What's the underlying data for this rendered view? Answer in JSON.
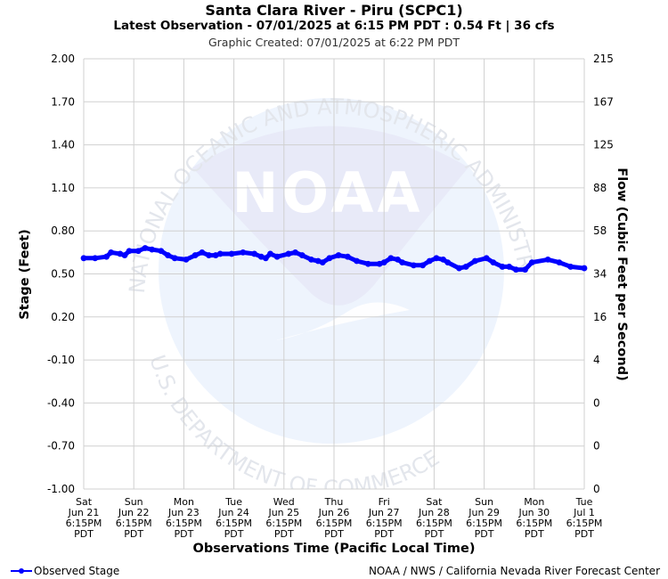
{
  "page": {
    "title": "Santa Clara River - Piru (SCPC1)",
    "subtitle": "Latest Observation - 07/01/2025 at 6:15 PM PDT : 0.54 Ft | 36 cfs",
    "created": "Graphic Created: 07/01/2025 at 6:22 PM PDT",
    "legend_label": "Observed Stage",
    "credit": "NOAA / NWS / California Nevada River Forecast Center",
    "watermark": {
      "logo_text": "NOAA",
      "top_text": "NATIONAL OCEANIC AND ATMOSPHERIC ADMINISTRATION",
      "bottom_text": "U.S. DEPARTMENT OF COMMERCE"
    }
  },
  "colors": {
    "series": "#0000ff",
    "grid": "#d0d0d0",
    "watermark_light": "#eef4fd",
    "watermark_mid": "#e9ebf8"
  },
  "chart_data": {
    "type": "line",
    "xlabel": "Observations Time (Pacific Local Time)",
    "ylabel": "Stage (Feet)",
    "y2label": "Flow (Cubic Feet per Second)",
    "ylim": [
      -1.0,
      2.0
    ],
    "yticks": [
      "2.00",
      "1.70",
      "1.40",
      "1.10",
      "0.80",
      "0.50",
      "0.20",
      "-0.10",
      "-0.40",
      "-0.70",
      "-1.00"
    ],
    "y2ticks": [
      "215",
      "167",
      "125",
      "88",
      "58",
      "34",
      "16",
      "4",
      "0",
      "0",
      "0"
    ],
    "xlim_days": [
      0,
      10
    ],
    "xticks": [
      {
        "day": "Sat",
        "date": "Jun 21",
        "time": "6:15PM",
        "tz": "PDT"
      },
      {
        "day": "Sun",
        "date": "Jun 22",
        "time": "6:15PM",
        "tz": "PDT"
      },
      {
        "day": "Mon",
        "date": "Jun 23",
        "time": "6:15PM",
        "tz": "PDT"
      },
      {
        "day": "Tue",
        "date": "Jun 24",
        "time": "6:15PM",
        "tz": "PDT"
      },
      {
        "day": "Wed",
        "date": "Jun 25",
        "time": "6:15PM",
        "tz": "PDT"
      },
      {
        "day": "Thu",
        "date": "Jun 26",
        "time": "6:15PM",
        "tz": "PDT"
      },
      {
        "day": "Fri",
        "date": "Jun 27",
        "time": "6:15PM",
        "tz": "PDT"
      },
      {
        "day": "Sat",
        "date": "Jun 28",
        "time": "6:15PM",
        "tz": "PDT"
      },
      {
        "day": "Sun",
        "date": "Jun 29",
        "time": "6:15PM",
        "tz": "PDT"
      },
      {
        "day": "Mon",
        "date": "Jun 30",
        "time": "6:15PM",
        "tz": "PDT"
      },
      {
        "day": "Tue",
        "date": "Jul 1",
        "time": "6:15PM",
        "tz": "PDT"
      }
    ],
    "grid": true,
    "legend": "bottom-left",
    "series": [
      {
        "name": "Observed Stage",
        "points": [
          [
            0.0,
            0.61
          ],
          [
            0.25,
            0.61
          ],
          [
            0.5,
            0.62
          ],
          [
            0.6,
            0.65
          ],
          [
            0.8,
            0.64
          ],
          [
            0.9,
            0.63
          ],
          [
            1.0,
            0.66
          ],
          [
            1.2,
            0.66
          ],
          [
            1.35,
            0.68
          ],
          [
            1.5,
            0.67
          ],
          [
            1.7,
            0.66
          ],
          [
            1.85,
            0.63
          ],
          [
            2.0,
            0.61
          ],
          [
            2.25,
            0.6
          ],
          [
            2.45,
            0.63
          ],
          [
            2.6,
            0.65
          ],
          [
            2.75,
            0.63
          ],
          [
            2.9,
            0.63
          ],
          [
            3.0,
            0.64
          ],
          [
            3.25,
            0.64
          ],
          [
            3.5,
            0.65
          ],
          [
            3.75,
            0.64
          ],
          [
            3.9,
            0.62
          ],
          [
            4.0,
            0.61
          ],
          [
            4.1,
            0.64
          ],
          [
            4.25,
            0.62
          ],
          [
            4.5,
            0.64
          ],
          [
            4.65,
            0.65
          ],
          [
            4.8,
            0.63
          ],
          [
            5.0,
            0.6
          ],
          [
            5.15,
            0.59
          ],
          [
            5.25,
            0.58
          ],
          [
            5.4,
            0.61
          ],
          [
            5.6,
            0.63
          ],
          [
            5.8,
            0.62
          ],
          [
            6.0,
            0.59
          ],
          [
            6.25,
            0.57
          ],
          [
            6.5,
            0.57
          ],
          [
            6.6,
            0.58
          ],
          [
            6.75,
            0.61
          ],
          [
            6.9,
            0.6
          ],
          [
            7.0,
            0.58
          ],
          [
            7.25,
            0.56
          ],
          [
            7.45,
            0.56
          ],
          [
            7.6,
            0.59
          ],
          [
            7.75,
            0.61
          ],
          [
            7.9,
            0.6
          ],
          [
            8.0,
            0.58
          ],
          [
            8.25,
            0.54
          ],
          [
            8.4,
            0.55
          ],
          [
            8.6,
            0.59
          ],
          [
            8.85,
            0.61
          ],
          [
            9.0,
            0.58
          ],
          [
            9.2,
            0.55
          ],
          [
            9.35,
            0.55
          ],
          [
            9.5,
            0.53
          ],
          [
            9.7,
            0.53
          ],
          [
            9.85,
            0.58
          ],
          [
            10.2,
            0.6
          ],
          [
            10.45,
            0.58
          ],
          [
            10.7,
            0.55
          ],
          [
            11.0,
            0.54
          ]
        ]
      }
    ]
  }
}
